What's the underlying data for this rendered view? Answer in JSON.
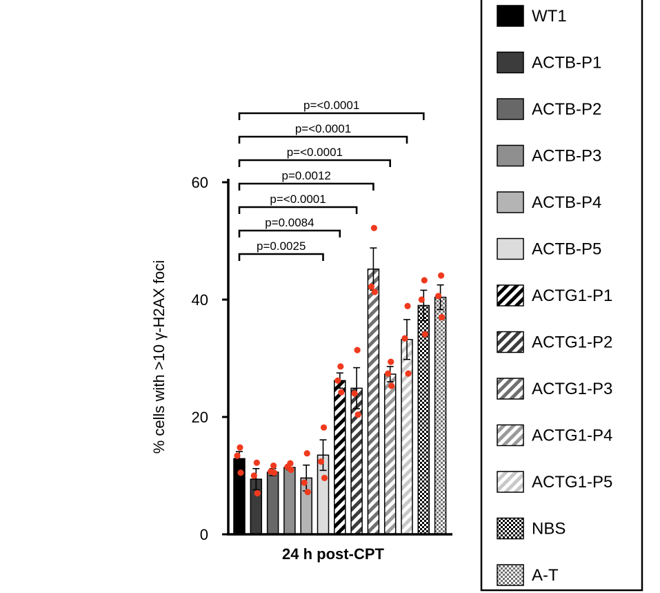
{
  "chart_data": {
    "type": "bar",
    "xlabel": "24 h post-CPT",
    "ylabel": "% cells with >10 γ-H2AX foci",
    "ylim": [
      0,
      60
    ],
    "yticks": [
      0,
      20,
      40,
      60
    ],
    "grid": false,
    "legend_position": "right",
    "colors": {
      "points": "#f03a1e",
      "axis": "#000000"
    },
    "series": [
      {
        "name": "WT1",
        "value": 12.9,
        "error": 1.2,
        "points": [
          14.8,
          13.4,
          10.5
        ],
        "fill": "solid",
        "color": "#000000"
      },
      {
        "name": "ACTB-P1",
        "value": 9.4,
        "error": 1.8,
        "points": [
          12.2,
          10.0,
          7.0
        ],
        "fill": "solid",
        "color": "#3c3c3c"
      },
      {
        "name": "ACTB-P2",
        "value": 10.6,
        "error": 0.6,
        "points": [
          11.7,
          10.7,
          10.5
        ],
        "fill": "solid",
        "color": "#686868"
      },
      {
        "name": "ACTB-P3",
        "value": 11.4,
        "error": 0.4,
        "points": [
          12.1,
          11.5,
          11.0
        ],
        "fill": "solid",
        "color": "#8f8f8f"
      },
      {
        "name": "ACTB-P4",
        "value": 9.6,
        "error": 2.2,
        "points": [
          13.8,
          8.8,
          7.2
        ],
        "fill": "solid",
        "color": "#b4b4b4"
      },
      {
        "name": "ACTB-P5",
        "value": 13.5,
        "error": 2.6,
        "points": [
          18.2,
          12.4,
          9.6
        ],
        "fill": "solid",
        "color": "#dcdcdc"
      },
      {
        "name": "ACTG1-P1",
        "value": 26.2,
        "error": 1.3,
        "points": [
          28.6,
          26.2,
          24.2
        ],
        "fill": "stripe",
        "color": "#000000"
      },
      {
        "name": "ACTG1-P2",
        "value": 24.9,
        "error": 3.5,
        "points": [
          31.4,
          24.0,
          20.4
        ],
        "fill": "stripe",
        "color": "#3c3c3c"
      },
      {
        "name": "ACTG1-P3",
        "value": 45.2,
        "error": 3.6,
        "points": [
          52.2,
          42.2,
          41.3
        ],
        "fill": "stripe",
        "color": "#707070"
      },
      {
        "name": "ACTG1-P4",
        "value": 27.3,
        "error": 1.3,
        "points": [
          29.4,
          27.4,
          25.3
        ],
        "fill": "stripe",
        "color": "#9a9a9a"
      },
      {
        "name": "ACTG1-P5",
        "value": 33.2,
        "error": 3.4,
        "points": [
          38.9,
          33.4,
          27.4
        ],
        "fill": "stripe",
        "color": "#c8c8c8"
      },
      {
        "name": "NBS",
        "value": 39.0,
        "error": 2.6,
        "points": [
          43.3,
          40.0,
          34.1
        ],
        "fill": "checker",
        "color": "#000000"
      },
      {
        "name": "A-T",
        "value": 40.4,
        "error": 2.1,
        "points": [
          44.1,
          40.6,
          37.0
        ],
        "fill": "checker",
        "color": "#707070"
      }
    ],
    "comparisons": [
      {
        "from": "WT1",
        "to": "ACTB-P5",
        "label": "p=0.0025"
      },
      {
        "from": "WT1",
        "to": "ACTG1-P1",
        "label": "p=0.0084"
      },
      {
        "from": "WT1",
        "to": "ACTG1-P2",
        "label": "p=<0.0001"
      },
      {
        "from": "WT1",
        "to": "ACTG1-P3",
        "label": "p=0.0012"
      },
      {
        "from": "WT1",
        "to": "ACTG1-P4",
        "label": "p=<0.0001"
      },
      {
        "from": "WT1",
        "to": "ACTG1-P5",
        "label": "p=<0.0001"
      },
      {
        "from": "WT1",
        "to": "NBS",
        "label": "p=<0.0001"
      }
    ]
  }
}
